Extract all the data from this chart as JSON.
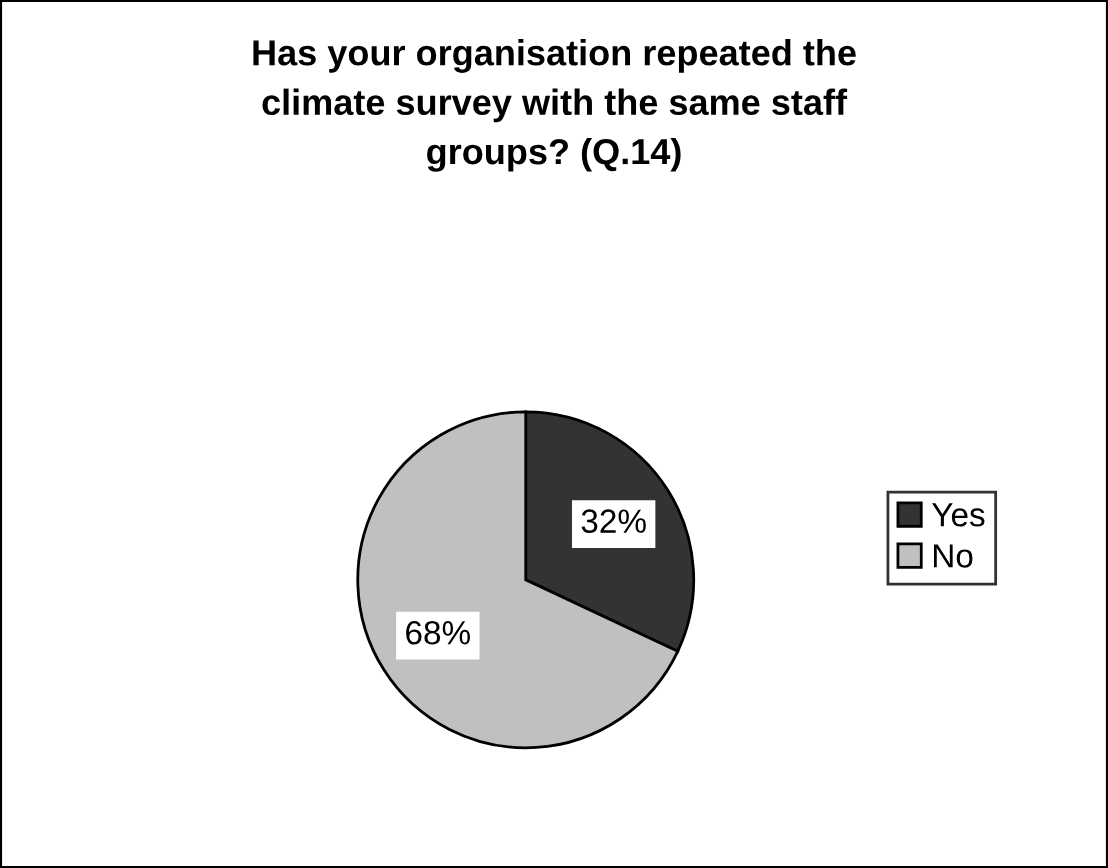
{
  "chart_data": {
    "type": "pie",
    "title": "Has your organisation repeated the\nclimate survey with the same staff\ngroups? (Q.14)",
    "categories": [
      "Yes",
      "No"
    ],
    "values": [
      32,
      68
    ],
    "colors": [
      "#333333",
      "#c0c0c0"
    ],
    "value_labels": [
      "32%",
      "68%"
    ],
    "legend": "right"
  }
}
